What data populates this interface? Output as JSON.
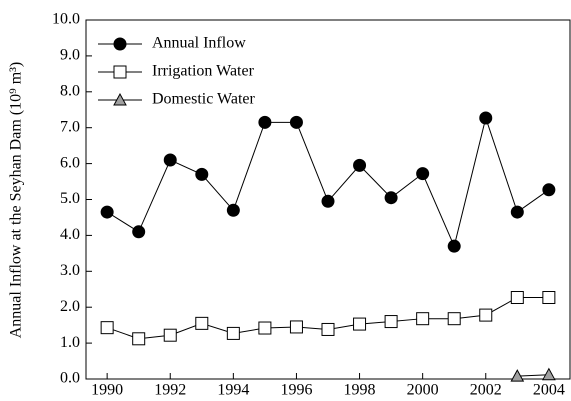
{
  "chart_data": {
    "type": "line",
    "y_label": "Annual Inflow at the Seyhan Dam (10⁹ m³)",
    "x": [
      1990,
      1991,
      1992,
      1993,
      1994,
      1995,
      1996,
      1997,
      1998,
      1999,
      2000,
      2001,
      2002,
      2003,
      2004
    ],
    "series": [
      {
        "name": "Annual Inflow",
        "color": "#000000",
        "marker": "circle",
        "values": [
          4.65,
          4.1,
          6.1,
          5.7,
          4.7,
          7.15,
          7.15,
          4.95,
          5.95,
          5.05,
          5.72,
          3.7,
          7.27,
          4.65,
          5.27
        ]
      },
      {
        "name": "Irrigation Water",
        "color": "#ffffff",
        "marker": "square",
        "values": [
          1.43,
          1.12,
          1.22,
          1.55,
          1.27,
          1.42,
          1.45,
          1.38,
          1.53,
          1.6,
          1.68,
          1.68,
          1.78,
          2.27,
          2.27
        ]
      },
      {
        "name": "Domestic Water",
        "color": "#a0a0a0",
        "marker": "triangle",
        "values": [
          null,
          null,
          null,
          null,
          null,
          null,
          null,
          null,
          null,
          null,
          null,
          null,
          null,
          0.08,
          0.12
        ]
      }
    ],
    "xlim": [
      1989.33,
      2004.67
    ],
    "xticks": [
      1990,
      1992,
      1994,
      1996,
      1998,
      2000,
      2002,
      2004
    ],
    "ylim": [
      0,
      10
    ],
    "yticks": [
      {
        "value": 0,
        "label": "0.0"
      },
      {
        "value": 1,
        "label": "1.0"
      },
      {
        "value": 2,
        "label": "2.0"
      },
      {
        "value": 3,
        "label": "3.0"
      },
      {
        "value": 4,
        "label": "4.0"
      },
      {
        "value": 5,
        "label": "5.0"
      },
      {
        "value": 6,
        "label": "6.0"
      },
      {
        "value": 7,
        "label": "7.0"
      },
      {
        "value": 8,
        "label": "8.0"
      },
      {
        "value": 9,
        "label": "9.0"
      },
      {
        "value": 10,
        "label": "10.0"
      }
    ],
    "legend": "upper-left"
  }
}
